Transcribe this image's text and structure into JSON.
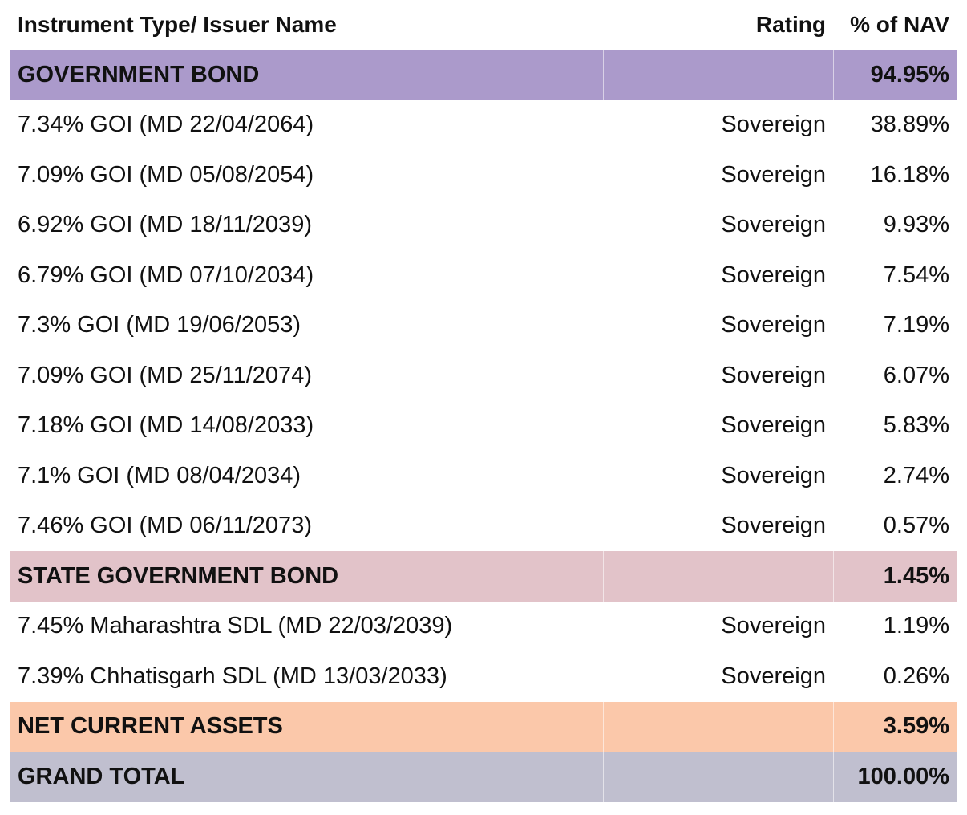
{
  "header": {
    "name": "Instrument Type/ Issuer Name",
    "rating": "Rating",
    "nav": "% of NAV"
  },
  "sections": {
    "government_bond": {
      "name": "GOVERNMENT BOND",
      "nav": "94.95%",
      "color": "#ab9acb",
      "rows": [
        {
          "name": "7.34% GOI (MD 22/04/2064)",
          "rating": "Sovereign",
          "nav": "38.89%"
        },
        {
          "name": "7.09% GOI (MD 05/08/2054)",
          "rating": "Sovereign",
          "nav": "16.18%"
        },
        {
          "name": "6.92% GOI (MD 18/11/2039)",
          "rating": "Sovereign",
          "nav": "9.93%"
        },
        {
          "name": "6.79% GOI (MD 07/10/2034)",
          "rating": "Sovereign",
          "nav": "7.54%"
        },
        {
          "name": "7.3% GOI (MD 19/06/2053)",
          "rating": "Sovereign",
          "nav": "7.19%"
        },
        {
          "name": "7.09% GOI (MD 25/11/2074)",
          "rating": "Sovereign",
          "nav": "6.07%"
        },
        {
          "name": "7.18% GOI (MD 14/08/2033)",
          "rating": "Sovereign",
          "nav": "5.83%"
        },
        {
          "name": "7.1% GOI (MD 08/04/2034)",
          "rating": "Sovereign",
          "nav": "2.74%"
        },
        {
          "name": "7.46% GOI (MD 06/11/2073)",
          "rating": "Sovereign",
          "nav": "0.57%"
        }
      ]
    },
    "state_government_bond": {
      "name": "STATE GOVERNMENT BOND",
      "nav": "1.45%",
      "color": "#e2c3c9",
      "rows": [
        {
          "name": "7.45% Maharashtra SDL (MD 22/03/2039)",
          "rating": "Sovereign",
          "nav": "1.19%"
        },
        {
          "name": "7.39% Chhatisgarh SDL (MD 13/03/2033)",
          "rating": "Sovereign",
          "nav": "0.26%"
        }
      ]
    },
    "net_current_assets": {
      "name": "NET CURRENT ASSETS",
      "nav": "3.59%",
      "color": "#fbc8aa"
    },
    "grand_total": {
      "name": "GRAND TOTAL",
      "nav": "100.00%",
      "color": "#c0bfcf"
    }
  }
}
